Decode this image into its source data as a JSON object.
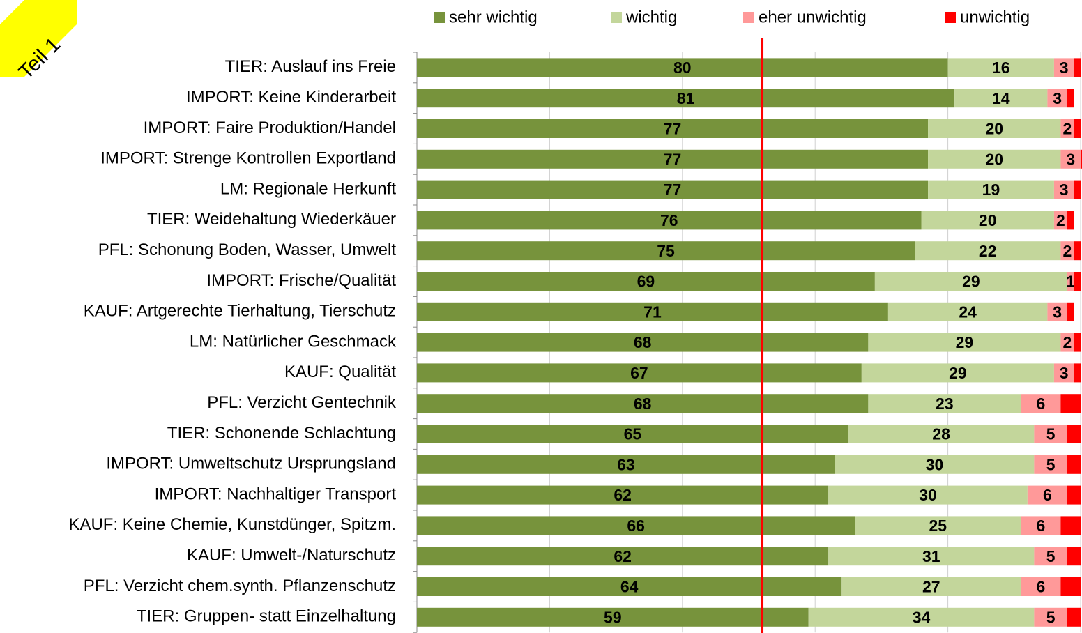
{
  "chart_data": {
    "type": "stacked-barh",
    "annotation": "Teil 1",
    "categories": [
      "TIER: Auslauf ins Freie",
      "IMPORT: Keine Kinderarbeit",
      "IMPORT: Faire Produktion/Handel",
      "IMPORT: Strenge Kontrollen Exportland",
      "LM: Regionale Herkunft",
      "TIER: Weidehaltung Wiederkäuer",
      "PFL: Schonung Boden, Wasser, Umwelt",
      "IMPORT: Frische/Qualität",
      "KAUF: Artgerechte Tierhaltung, Tierschutz",
      "LM: Natürlicher Geschmack",
      "KAUF: Qualität",
      "PFL: Verzicht Gentechnik",
      "TIER: Schonende Schlachtung",
      "IMPORT: Umweltschutz Ursprungsland",
      "IMPORT: Nachhaltiger Transport",
      "KAUF: Keine Chemie, Kunstdünger, Spitzm.",
      "KAUF: Umwelt-/Naturschutz",
      "PFL: Verzicht chem.synth. Pflanzenschutz",
      "TIER: Gruppen- statt Einzelhaltung"
    ],
    "series": [
      {
        "name": "sehr wichtig",
        "color": "#77933c",
        "values": [
          80,
          81,
          77,
          77,
          77,
          76,
          75,
          69,
          71,
          68,
          67,
          68,
          65,
          63,
          62,
          66,
          62,
          64,
          59
        ]
      },
      {
        "name": "wichtig",
        "color": "#c3d69b",
        "values": [
          16,
          14,
          20,
          20,
          19,
          20,
          22,
          29,
          24,
          29,
          29,
          23,
          28,
          30,
          30,
          25,
          31,
          27,
          34
        ]
      },
      {
        "name": "eher unwichtig",
        "color": "#ff9999",
        "values": [
          3,
          3,
          2,
          3,
          3,
          2,
          2,
          1,
          3,
          2,
          3,
          6,
          5,
          5,
          6,
          6,
          5,
          6,
          5
        ]
      },
      {
        "name": "unwichtig",
        "color": "#ff0000",
        "show_labels": false,
        "values": [
          1,
          1,
          1,
          0.5,
          1,
          1,
          1,
          1,
          1,
          1,
          1,
          3,
          2,
          2,
          2,
          3,
          2,
          3,
          2
        ]
      }
    ],
    "xlim": [
      0,
      100
    ],
    "xticks": [
      0,
      20,
      40,
      60,
      80,
      100
    ],
    "grid": true,
    "reference_line": {
      "value": 52,
      "color": "#ff0000"
    }
  }
}
